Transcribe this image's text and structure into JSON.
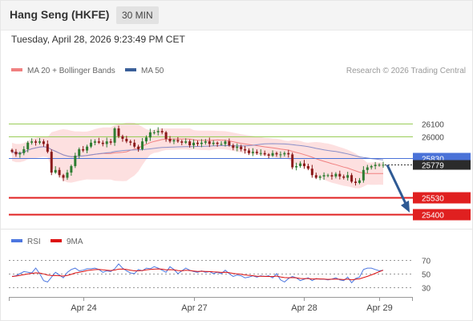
{
  "header": {
    "title": "Hang Seng (HKFE)",
    "timeframe": "30 MIN"
  },
  "datetime": "Tuesday, April 28, 2026 9:23:49 PM CET",
  "legend": [
    {
      "label": "MA 20 + Bollinger Bands",
      "color": "#f08080"
    },
    {
      "label": "MA 50",
      "color": "#3a5f99"
    }
  ],
  "credit": "Research © 2026 Trading Central",
  "colors": {
    "candle_up": "#2e7d32",
    "candle_down": "#8b1a1a",
    "band_fill": "#fde0e0",
    "ma20": "#f08080",
    "ma50": "#8a8fc8",
    "resistance": "#9acd58",
    "pivot": "#4a72d8",
    "support": "#e02020",
    "current": "#2b2b2b",
    "arrow": "#2f5a94",
    "rsi": "#4d77e0",
    "rsi_ma": "#dd1111"
  },
  "chart_data": [
    {
      "type": "candlestick",
      "title": "",
      "x_ticks": [
        "Apr 24",
        "Apr 27",
        "Apr 28",
        "Apr 29"
      ],
      "ylim": [
        25300,
        26400
      ],
      "levels": [
        {
          "label": "26100",
          "value": 26100,
          "kind": "resistance"
        },
        {
          "label": "26000",
          "value": 26000,
          "kind": "resistance"
        },
        {
          "label": "25830",
          "value": 25830,
          "kind": "pivot"
        },
        {
          "label": "25530",
          "value": 25530,
          "kind": "support"
        },
        {
          "label": "25400",
          "value": 25400,
          "kind": "support"
        }
      ],
      "current_price": {
        "label": "25779",
        "value": 25779
      },
      "close": [
        25880,
        25860,
        25870,
        25900,
        25950,
        25960,
        25950,
        25960,
        25940,
        25880,
        25720,
        25740,
        25700,
        25680,
        25720,
        25770,
        25850,
        25900,
        25890,
        25920,
        25950,
        25960,
        25950,
        25940,
        25960,
        25950,
        26060,
        26000,
        25980,
        25960,
        25950,
        25920,
        25900,
        25960,
        25990,
        26030,
        26030,
        26040,
        26030,
        25980,
        25960,
        25970,
        25960,
        25950,
        25960,
        25930,
        25950,
        25940,
        25950,
        25960,
        25940,
        25950,
        25940,
        25940,
        25960,
        25930,
        25910,
        25920,
        25900,
        25890,
        25870,
        25880,
        25870,
        25870,
        25860,
        25850,
        25870,
        25860,
        25860,
        25870,
        25860,
        25760,
        25770,
        25790,
        25770,
        25750,
        25700,
        25680,
        25690,
        25700,
        25700,
        25690,
        25710,
        25690,
        25680,
        25700,
        25650,
        25640,
        25660,
        25740,
        25760,
        25770,
        25780,
        25780,
        25780
      ],
      "forecast_path": [
        25779,
        25400
      ],
      "rsi": {
        "label": "RSI",
        "ma_label": "9MA",
        "yticks": [
          70,
          50,
          30
        ],
        "rsi_values": [
          46,
          47,
          50,
          53,
          52,
          51,
          58,
          50,
          40,
          38,
          45,
          52,
          48,
          44,
          52,
          56,
          58,
          54,
          55,
          57,
          57,
          58,
          56,
          52,
          54,
          53,
          57,
          64,
          58,
          54,
          51,
          50,
          56,
          54,
          58,
          57,
          60,
          58,
          55,
          52,
          60,
          56,
          50,
          54,
          58,
          55,
          53,
          52,
          54,
          52,
          53,
          50,
          52,
          50,
          55,
          50,
          46,
          48,
          47,
          44,
          45,
          47,
          45,
          47,
          46,
          47,
          44,
          50,
          41,
          38,
          43,
          46,
          44,
          40,
          42,
          44,
          40,
          43,
          42,
          42,
          41,
          42,
          44,
          41,
          40,
          45,
          37,
          43,
          45,
          56,
          58,
          58,
          56,
          54,
          55
        ],
        "ma_values": [
          46,
          46.5,
          47.5,
          48.5,
          49.5,
          50.5,
          51.2,
          50.8,
          49.6,
          48,
          47.2,
          47.5,
          47,
          46.5,
          47.5,
          49,
          51,
          52,
          53,
          54.5,
          55.2,
          55.8,
          56,
          55.5,
          55,
          54.5,
          55.2,
          56.5,
          56.7,
          56,
          55,
          54,
          54.2,
          54.5,
          55.5,
          56,
          56.5,
          56.8,
          56.5,
          55.5,
          55.8,
          55.5,
          54.5,
          54,
          54.8,
          54.5,
          53.8,
          53.2,
          53.5,
          53.2,
          53,
          52.5,
          52.3,
          51.8,
          52,
          51.4,
          50.4,
          49.8,
          49.2,
          48.2,
          47.6,
          47.1,
          46.3,
          46.2,
          46.1,
          46,
          45.8,
          46.5,
          45.3,
          44.4,
          44.1,
          44.3,
          43.9,
          43.1,
          42.8,
          43,
          42.1,
          42.5,
          42.4,
          42.3,
          41.8,
          42,
          42.3,
          41.9,
          41.5,
          42.3,
          41,
          41.9,
          42.5,
          44.3,
          46.1,
          48.2,
          50.5,
          52.9,
          55
        ]
      }
    }
  ]
}
